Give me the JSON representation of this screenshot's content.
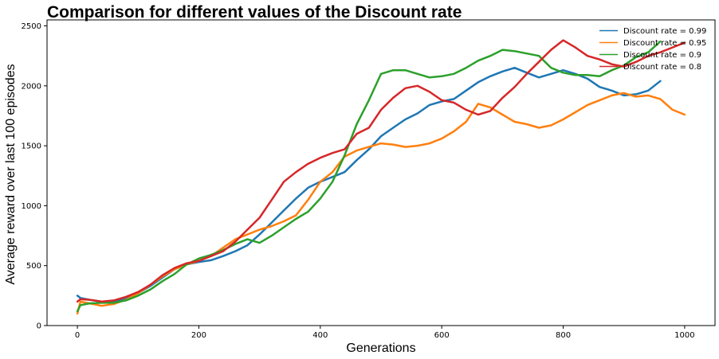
{
  "chart_data": {
    "type": "line",
    "title": "Comparison for different values of the Discount rate",
    "xlabel": "Generations",
    "ylabel": "Average reward over last 100 episodes",
    "xlim": [
      -50,
      1050
    ],
    "ylim": [
      0,
      2550
    ],
    "xticks": [
      0,
      200,
      400,
      600,
      800,
      1000
    ],
    "yticks": [
      0,
      500,
      1000,
      1500,
      2000,
      2500
    ],
    "grid": false,
    "legend_position": "top-right",
    "series": [
      {
        "name": "Discount rate = 0.99",
        "color": "#1f77b4",
        "x": [
          0,
          5,
          20,
          40,
          60,
          80,
          100,
          120,
          140,
          160,
          180,
          200,
          220,
          240,
          260,
          280,
          300,
          320,
          340,
          360,
          380,
          400,
          420,
          440,
          460,
          480,
          500,
          520,
          540,
          560,
          580,
          600,
          620,
          640,
          660,
          680,
          700,
          720,
          740,
          760,
          780,
          800,
          820,
          840,
          860,
          880,
          900,
          920,
          940,
          960
        ],
        "values": [
          250,
          230,
          215,
          200,
          205,
          225,
          270,
          330,
          400,
          470,
          510,
          530,
          545,
          580,
          620,
          670,
          760,
          860,
          960,
          1060,
          1150,
          1200,
          1240,
          1280,
          1380,
          1470,
          1580,
          1650,
          1720,
          1770,
          1840,
          1870,
          1890,
          1960,
          2030,
          2080,
          2120,
          2150,
          2110,
          2070,
          2100,
          2130,
          2100,
          2060,
          1990,
          1960,
          1920,
          1930,
          1960,
          2040
        ]
      },
      {
        "name": "Discount rate = 0.95",
        "color": "#ff7f0e",
        "x": [
          0,
          5,
          20,
          40,
          60,
          80,
          100,
          120,
          140,
          160,
          180,
          200,
          220,
          240,
          260,
          280,
          300,
          320,
          340,
          360,
          380,
          400,
          420,
          440,
          460,
          480,
          500,
          520,
          540,
          560,
          580,
          600,
          620,
          640,
          660,
          680,
          700,
          720,
          740,
          760,
          780,
          800,
          820,
          840,
          860,
          880,
          900,
          920,
          940,
          960,
          980,
          1000
        ],
        "values": [
          100,
          200,
          185,
          165,
          180,
          215,
          270,
          340,
          410,
          470,
          510,
          540,
          580,
          650,
          720,
          760,
          800,
          830,
          870,
          920,
          1050,
          1200,
          1280,
          1410,
          1460,
          1490,
          1520,
          1510,
          1490,
          1500,
          1520,
          1560,
          1620,
          1700,
          1850,
          1820,
          1760,
          1700,
          1680,
          1650,
          1670,
          1720,
          1780,
          1840,
          1880,
          1920,
          1940,
          1910,
          1920,
          1890,
          1800,
          1760
        ]
      },
      {
        "name": "Discount rate = 0.9",
        "color": "#2ca02c",
        "x": [
          0,
          5,
          20,
          40,
          60,
          80,
          100,
          120,
          140,
          160,
          180,
          200,
          220,
          240,
          260,
          280,
          300,
          320,
          340,
          360,
          380,
          400,
          420,
          440,
          460,
          480,
          500,
          520,
          540,
          560,
          580,
          600,
          620,
          640,
          660,
          680,
          700,
          720,
          740,
          760,
          780,
          800,
          820,
          840,
          860,
          880,
          900,
          920,
          940,
          960
        ],
        "values": [
          120,
          170,
          185,
          190,
          190,
          210,
          250,
          300,
          370,
          430,
          510,
          560,
          590,
          630,
          680,
          720,
          690,
          750,
          820,
          890,
          950,
          1060,
          1200,
          1420,
          1680,
          1880,
          2100,
          2130,
          2130,
          2100,
          2070,
          2080,
          2100,
          2150,
          2210,
          2250,
          2300,
          2290,
          2270,
          2250,
          2150,
          2110,
          2090,
          2090,
          2080,
          2130,
          2170,
          2240,
          2280,
          2370
        ]
      },
      {
        "name": "Discount rate = 0.8",
        "color": "#d62728",
        "x": [
          0,
          5,
          20,
          40,
          60,
          80,
          100,
          120,
          140,
          160,
          180,
          200,
          220,
          240,
          260,
          280,
          300,
          320,
          340,
          360,
          380,
          400,
          420,
          440,
          460,
          480,
          500,
          520,
          540,
          560,
          580,
          600,
          620,
          640,
          660,
          680,
          700,
          720,
          740,
          760,
          780,
          800,
          820,
          840,
          860,
          880,
          900,
          920,
          940,
          960,
          980,
          1000
        ],
        "values": [
          200,
          220,
          215,
          200,
          210,
          240,
          280,
          340,
          420,
          480,
          520,
          540,
          580,
          620,
          700,
          800,
          900,
          1050,
          1200,
          1280,
          1350,
          1400,
          1440,
          1470,
          1600,
          1650,
          1800,
          1900,
          1980,
          2000,
          1950,
          1880,
          1860,
          1800,
          1760,
          1790,
          1900,
          1990,
          2100,
          2200,
          2300,
          2380,
          2320,
          2250,
          2220,
          2180,
          2160,
          2200,
          2250,
          2280,
          2320,
          2360
        ]
      }
    ]
  }
}
